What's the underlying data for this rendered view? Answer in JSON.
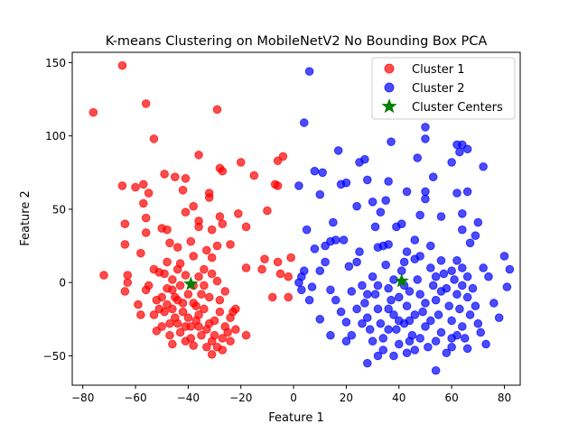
{
  "chart_data": {
    "type": "scatter",
    "title": "K-means Clustering on MobileNetV2 No Bounding Box PCA",
    "xlabel": "Feature 1",
    "ylabel": "Feature 2",
    "xlim": [
      -84,
      86
    ],
    "ylim": [
      -70,
      157
    ],
    "xticks": [
      -80,
      -60,
      -40,
      -20,
      0,
      20,
      40,
      60,
      80
    ],
    "yticks": [
      -50,
      0,
      50,
      100,
      150
    ],
    "grid": false,
    "legend_position": "top-right",
    "series": [
      {
        "name": "Cluster 1",
        "color": "#ff0000",
        "alpha": 0.7,
        "marker": "circle",
        "points": [
          [
            -76,
            116
          ],
          [
            -65,
            148
          ],
          [
            -56,
            122
          ],
          [
            -53,
            98
          ],
          [
            -29,
            118
          ],
          [
            -36,
            87
          ],
          [
            -20,
            82
          ],
          [
            -15,
            73
          ],
          [
            -6,
            83
          ],
          [
            -4,
            86
          ],
          [
            -27,
            76
          ],
          [
            -28,
            78
          ],
          [
            -49,
            74
          ],
          [
            -45,
            72
          ],
          [
            -41,
            71
          ],
          [
            -65,
            66
          ],
          [
            -60,
            65
          ],
          [
            -57,
            67
          ],
          [
            -55,
            61
          ],
          [
            -42,
            63
          ],
          [
            -32,
            61
          ],
          [
            -32,
            58
          ],
          [
            -7,
            67
          ],
          [
            -6,
            66
          ],
          [
            -38,
            52
          ],
          [
            -41,
            48
          ],
          [
            -21,
            47
          ],
          [
            -57,
            54
          ],
          [
            -28,
            45
          ],
          [
            -10,
            49
          ],
          [
            -64,
            40
          ],
          [
            -56,
            44
          ],
          [
            -50,
            37
          ],
          [
            -48,
            36
          ],
          [
            -36,
            42
          ],
          [
            -36,
            38
          ],
          [
            -27,
            40
          ],
          [
            -31,
            36
          ],
          [
            -18,
            38
          ],
          [
            -64,
            26
          ],
          [
            -56,
            34
          ],
          [
            -47,
            27
          ],
          [
            -44,
            24
          ],
          [
            -39,
            28
          ],
          [
            -24,
            26
          ],
          [
            -29,
            25
          ],
          [
            -33,
            22
          ],
          [
            -58,
            20
          ],
          [
            -48,
            14
          ],
          [
            -43,
            13
          ],
          [
            -38,
            18
          ],
          [
            -31,
            17
          ],
          [
            -18,
            10
          ],
          [
            -11,
            16
          ],
          [
            -6,
            14
          ],
          [
            -1,
            17
          ],
          [
            -5,
            6
          ],
          [
            -2,
            4
          ],
          [
            -12,
            9
          ],
          [
            -72,
            5
          ],
          [
            -63,
            0
          ],
          [
            -63,
            5
          ],
          [
            -64,
            -6
          ],
          [
            -59,
            -15
          ],
          [
            -56,
            -5
          ],
          [
            -58,
            -22
          ],
          [
            -52,
            -33
          ],
          [
            -46,
            -42
          ],
          [
            -38,
            -43
          ],
          [
            -31,
            -49
          ],
          [
            -18,
            -36
          ],
          [
            -8,
            -10
          ],
          [
            -2,
            -10
          ],
          [
            -53,
            9
          ],
          [
            -51,
            7
          ],
          [
            -49,
            6
          ],
          [
            -46,
            2
          ],
          [
            -44,
            9
          ],
          [
            -41,
            5
          ],
          [
            -38,
            -2
          ],
          [
            -36,
            4
          ],
          [
            -34,
            9
          ],
          [
            -31,
            6
          ],
          [
            -29,
            1
          ],
          [
            -50,
            -10
          ],
          [
            -48,
            -15
          ],
          [
            -46,
            -5
          ],
          [
            -44,
            -12
          ],
          [
            -42,
            -20
          ],
          [
            -40,
            -8
          ],
          [
            -38,
            -14
          ],
          [
            -36,
            -22
          ],
          [
            -34,
            -18
          ],
          [
            -32,
            -10
          ],
          [
            -30,
            -26
          ],
          [
            -28,
            -20
          ],
          [
            -26,
            -30
          ],
          [
            -24,
            -24
          ],
          [
            -22,
            -18
          ],
          [
            -47,
            -28
          ],
          [
            -45,
            -24
          ],
          [
            -43,
            -34
          ],
          [
            -41,
            -30
          ],
          [
            -39,
            -38
          ],
          [
            -37,
            -26
          ],
          [
            -35,
            -36
          ],
          [
            -33,
            -32
          ],
          [
            -31,
            -40
          ],
          [
            -29,
            -44
          ],
          [
            -27,
            -38
          ],
          [
            -25,
            -34
          ],
          [
            -49,
            -20
          ],
          [
            -51,
            -18
          ],
          [
            -53,
            -22
          ],
          [
            -55,
            -2
          ],
          [
            -52,
            -12
          ],
          [
            -47,
            -36
          ],
          [
            -44,
            -28
          ],
          [
            -42,
            -14
          ],
          [
            -40,
            -24
          ],
          [
            -39,
            -30
          ],
          [
            -37,
            -16
          ],
          [
            -35,
            -8
          ],
          [
            -33,
            -44
          ],
          [
            -32,
            -28
          ],
          [
            -30,
            -36
          ],
          [
            -28,
            -12
          ],
          [
            -27,
            -46
          ],
          [
            -26,
            -6
          ],
          [
            -24,
            -40
          ],
          [
            -23,
            -20
          ],
          [
            -22,
            -32
          ],
          [
            -46,
            -18
          ],
          [
            -43,
            -2
          ],
          [
            -41,
            -40
          ],
          [
            -50,
            -30
          ],
          [
            -48,
            -4
          ],
          [
            -45,
            -10
          ],
          [
            -36,
            -30
          ],
          [
            -34,
            -2
          ]
        ]
      },
      {
        "name": "Cluster 2",
        "color": "#0000ff",
        "alpha": 0.7,
        "marker": "circle",
        "points": [
          [
            6,
            144
          ],
          [
            4,
            109
          ],
          [
            50,
            106
          ],
          [
            50,
            98
          ],
          [
            37,
            96
          ],
          [
            62,
            94
          ],
          [
            64,
            94
          ],
          [
            66,
            91
          ],
          [
            63,
            89
          ],
          [
            17,
            90
          ],
          [
            72,
            79
          ],
          [
            47,
            85
          ],
          [
            27,
            84
          ],
          [
            25,
            82
          ],
          [
            60,
            82
          ],
          [
            8,
            76
          ],
          [
            11,
            75
          ],
          [
            20,
            68
          ],
          [
            18,
            67
          ],
          [
            28,
            70
          ],
          [
            36,
            69
          ],
          [
            53,
            72
          ],
          [
            66,
            62
          ],
          [
            62,
            61
          ],
          [
            50,
            62
          ],
          [
            43,
            62
          ],
          [
            50,
            57
          ],
          [
            10,
            60
          ],
          [
            2,
            66
          ],
          [
            35,
            56
          ],
          [
            30,
            55
          ],
          [
            24,
            52
          ],
          [
            33,
            48
          ],
          [
            31,
            38
          ],
          [
            41,
            40
          ],
          [
            39,
            38
          ],
          [
            48,
            46
          ],
          [
            56,
            45
          ],
          [
            64,
            47
          ],
          [
            70,
            41
          ],
          [
            64,
            36
          ],
          [
            15,
            41
          ],
          [
            5,
            36
          ],
          [
            46,
            29
          ],
          [
            52,
            25
          ],
          [
            67,
            27
          ],
          [
            69,
            32
          ],
          [
            36,
            26
          ],
          [
            34,
            25
          ],
          [
            32,
            24
          ],
          [
            19,
            29
          ],
          [
            16,
            29
          ],
          [
            14,
            28
          ],
          [
            12,
            25
          ],
          [
            8,
            23
          ],
          [
            25,
            21
          ],
          [
            43,
            21
          ],
          [
            56,
            15
          ],
          [
            62,
            15
          ],
          [
            64,
            10
          ],
          [
            80,
            18
          ],
          [
            82,
            9
          ],
          [
            72,
            10
          ],
          [
            74,
            4
          ],
          [
            81,
            -3
          ],
          [
            76,
            -14
          ],
          [
            78,
            -24
          ],
          [
            73,
            -42
          ],
          [
            66,
            -45
          ],
          [
            60,
            -38
          ],
          [
            54,
            -60
          ],
          [
            43,
            -48
          ],
          [
            32,
            -50
          ],
          [
            28,
            -55
          ],
          [
            20,
            -40
          ],
          [
            14,
            -36
          ],
          [
            10,
            -25
          ],
          [
            6,
            -12
          ],
          [
            3,
            -5
          ],
          [
            2,
            0
          ],
          [
            3,
            4
          ],
          [
            4,
            8
          ],
          [
            7,
            -3
          ],
          [
            10,
            8
          ],
          [
            12,
            14
          ],
          [
            14,
            -5
          ],
          [
            16,
            -12
          ],
          [
            18,
            -20
          ],
          [
            20,
            -27
          ],
          [
            21,
            11
          ],
          [
            22,
            -6
          ],
          [
            24,
            14
          ],
          [
            26,
            -2
          ],
          [
            27,
            -14
          ],
          [
            28,
            -24
          ],
          [
            29,
            -32
          ],
          [
            30,
            4
          ],
          [
            31,
            -8
          ],
          [
            32,
            -18
          ],
          [
            33,
            -28
          ],
          [
            34,
            -38
          ],
          [
            35,
            12
          ],
          [
            36,
            -4
          ],
          [
            37,
            -12
          ],
          [
            38,
            -22
          ],
          [
            39,
            -32
          ],
          [
            40,
            -42
          ],
          [
            41,
            8
          ],
          [
            42,
            -2
          ],
          [
            43,
            -16
          ],
          [
            44,
            -26
          ],
          [
            45,
            -36
          ],
          [
            46,
            16
          ],
          [
            47,
            2
          ],
          [
            48,
            -8
          ],
          [
            49,
            -20
          ],
          [
            50,
            -30
          ],
          [
            51,
            -44
          ],
          [
            52,
            10
          ],
          [
            53,
            -2
          ],
          [
            54,
            -12
          ],
          [
            55,
            -22
          ],
          [
            56,
            -34
          ],
          [
            57,
            6
          ],
          [
            58,
            -4
          ],
          [
            59,
            -16
          ],
          [
            60,
            -26
          ],
          [
            61,
            2
          ],
          [
            62,
            -8
          ],
          [
            63,
            -18
          ],
          [
            64,
            -30
          ],
          [
            65,
            -38
          ],
          [
            66,
            -10
          ],
          [
            67,
            -22
          ],
          [
            68,
            -4
          ],
          [
            69,
            -16
          ],
          [
            70,
            -28
          ],
          [
            71,
            -34
          ],
          [
            30,
            -40
          ],
          [
            34,
            -46
          ],
          [
            38,
            -50
          ],
          [
            42,
            -28
          ],
          [
            46,
            -46
          ],
          [
            50,
            -14
          ],
          [
            54,
            -40
          ],
          [
            58,
            -48
          ],
          [
            62,
            -36
          ],
          [
            44,
            -6
          ],
          [
            48,
            -38
          ],
          [
            36,
            -18
          ],
          [
            32,
            -2
          ],
          [
            40,
            -10
          ],
          [
            52,
            -26
          ],
          [
            56,
            -6
          ],
          [
            60,
            -44
          ],
          [
            64,
            -2
          ],
          [
            26,
            -28
          ],
          [
            24,
            -18
          ],
          [
            22,
            -36
          ],
          [
            28,
            -8
          ],
          [
            38,
            2
          ],
          [
            42,
            14
          ],
          [
            46,
            -22
          ],
          [
            66,
            4
          ],
          [
            60,
            8
          ],
          [
            54,
            4
          ],
          [
            48,
            18
          ],
          [
            36,
            -32
          ],
          [
            40,
            -26
          ],
          [
            44,
            -40
          ]
        ]
      },
      {
        "name": "Cluster Centers",
        "color": "#008000",
        "marker": "star",
        "points": [
          [
            -39,
            -1
          ],
          [
            41,
            1
          ]
        ]
      }
    ]
  }
}
